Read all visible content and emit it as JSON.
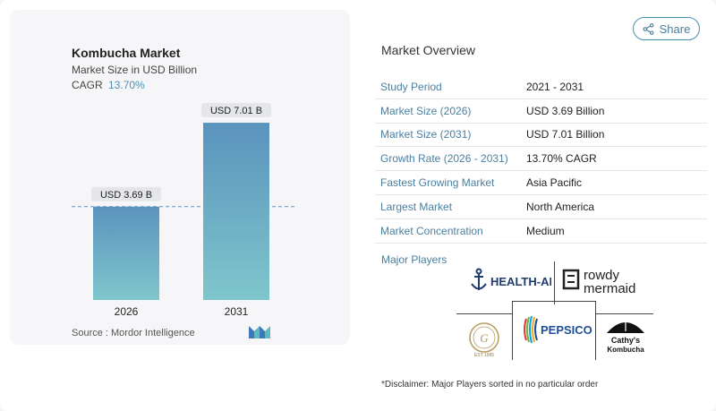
{
  "chart": {
    "title": "Kombucha Market",
    "subtitle": "Market Size in USD Billion",
    "cagr_label": "CAGR",
    "cagr_value": "13.70%",
    "source": "Source :  Mordor Intelligence"
  },
  "chart_data": {
    "type": "bar",
    "categories": [
      "2026",
      "2031"
    ],
    "values": [
      3.69,
      7.01
    ],
    "data_labels": [
      "USD 3.69 B",
      "USD 7.01 B"
    ],
    "title": "Kombucha Market",
    "subtitle": "Market Size in USD Billion",
    "ylim": [
      0,
      7.5
    ],
    "grid": false,
    "reference_line_value": 3.69,
    "bar_colors": [
      "#5a93bd",
      "#7fc6cc"
    ]
  },
  "share": {
    "label": "Share"
  },
  "overview": {
    "title": "Market Overview",
    "rows": [
      {
        "label": "Study Period",
        "value": "2021 - 2031"
      },
      {
        "label": "Market Size (2026)",
        "value": "USD 3.69 Billion"
      },
      {
        "label": "Market Size (2031)",
        "value": "USD 7.01 Billion"
      },
      {
        "label": "Growth Rate (2026 - 2031)",
        "value": "13.70% CAGR"
      },
      {
        "label": "Fastest Growing Market",
        "value": "Asia Pacific"
      },
      {
        "label": "Largest Market",
        "value": "North America"
      },
      {
        "label": "Market Concentration",
        "value": "Medium"
      }
    ]
  },
  "players": {
    "title": "Major Players",
    "health_ade": "HEALTH-ADE",
    "rowdy_1": "rowdy",
    "rowdy_2": "mermaid",
    "pepsico": "PEPSICO",
    "cathys_1": "Cathy's",
    "cathys_2": "Kombucha",
    "gt_est": "EST 1995"
  },
  "disclaimer": "*Disclaimer: Major Players sorted in no particular order",
  "colors": {
    "accent": "#4b8fb2",
    "label_text": "#4a7fa0"
  }
}
